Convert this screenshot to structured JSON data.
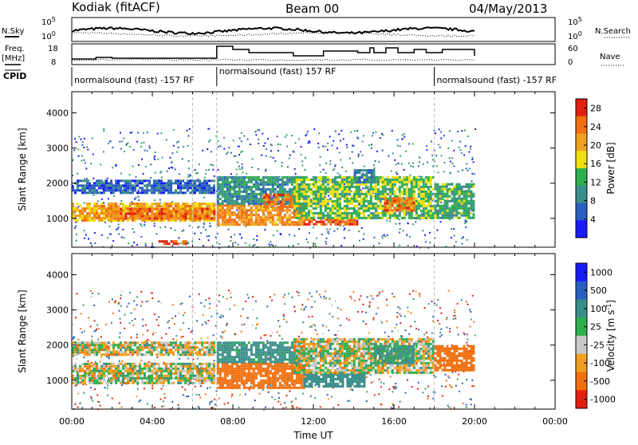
{
  "header": {
    "station": "Kodiak (fitACF)",
    "beam": "Beam 00",
    "date": "04/May/2013"
  },
  "strip_labels": {
    "nsky": "N.Sky",
    "nsearch": "N.Search",
    "freq": "Freq.",
    "freq_unit": "[MHz]",
    "nave": "Nave",
    "cpid": "CPID"
  },
  "strip_ticks": {
    "nsky_top": "10^5",
    "nsky_bottom": "10^0",
    "nsearch_top": "10^5",
    "nsearch_bottom": "10^0",
    "freq_top": "18",
    "freq_bottom": "8",
    "nave_top": "60",
    "nave_bottom": "0"
  },
  "cpid_segments": [
    {
      "label": "normalsound (fast) -157 RF",
      "start_hour": 0,
      "end_hour": 7.2
    },
    {
      "label": "normalsound (fast) 157 RF",
      "start_hour": 7.2,
      "end_hour": 18.0
    },
    {
      "label": "normalsound (fast) -157 RF",
      "start_hour": 18.0,
      "end_hour": 20.0
    }
  ],
  "chart_data": [
    {
      "type": "heatmap",
      "name": "power",
      "xlabel": "Time UT",
      "ylabel": "Slant Range [km]",
      "xlim_hours": [
        0,
        24
      ],
      "ylim": [
        180,
        4600
      ],
      "x_ticks": [
        "00:00",
        "04:00",
        "08:00",
        "12:00",
        "16:00",
        "20:00",
        "00:00"
      ],
      "y_ticks": [
        1000,
        2000,
        3000,
        4000
      ],
      "colorbar": {
        "label": "Power [dB]",
        "ticks": [
          4,
          8,
          12,
          16,
          20,
          24,
          28
        ],
        "range": [
          0,
          30
        ],
        "colors": [
          "#1a1aff",
          "#2a5fbf",
          "#3a8f8a",
          "#2fae4e",
          "#f0e010",
          "#f0a020",
          "#f07010",
          "#e02010"
        ]
      },
      "regions": [
        {
          "t0": 0.0,
          "t1": 7.1,
          "r0": 950,
          "r1": 1450,
          "value": 20
        },
        {
          "t0": 1.8,
          "t1": 7.1,
          "r0": 1000,
          "r1": 1300,
          "value": 24
        },
        {
          "t0": 0.0,
          "t1": 7.1,
          "r0": 1750,
          "r1": 2100,
          "value": 6
        },
        {
          "t0": 4.3,
          "t1": 5.7,
          "r0": 280,
          "r1": 380,
          "value": 26
        },
        {
          "t0": 7.2,
          "t1": 11.5,
          "r0": 800,
          "r1": 1400,
          "value": 22
        },
        {
          "t0": 7.2,
          "t1": 11.5,
          "r0": 1400,
          "r1": 2200,
          "value": 10
        },
        {
          "t0": 9.5,
          "t1": 11.0,
          "r0": 1300,
          "r1": 1700,
          "value": 24
        },
        {
          "t0": 11.5,
          "t1": 14.2,
          "r0": 800,
          "r1": 1000,
          "value": 26
        },
        {
          "t0": 11.0,
          "t1": 18.0,
          "r0": 1000,
          "r1": 2200,
          "value": 14
        },
        {
          "t0": 15.5,
          "t1": 17.0,
          "r0": 1200,
          "r1": 1600,
          "value": 24
        },
        {
          "t0": 18.0,
          "t1": 20.0,
          "r0": 1000,
          "r1": 2000,
          "value": 12
        },
        {
          "t0": 14.0,
          "t1": 15.0,
          "r0": 2000,
          "r1": 2400,
          "value": 8
        }
      ]
    },
    {
      "type": "heatmap",
      "name": "velocity",
      "xlabel": "Time UT",
      "ylabel": "Slant Range [km]",
      "xlim_hours": [
        0,
        24
      ],
      "ylim": [
        180,
        4600
      ],
      "x_ticks": [
        "00:00",
        "04:00",
        "08:00",
        "12:00",
        "16:00",
        "20:00",
        "00:00"
      ],
      "y_ticks": [
        1000,
        2000,
        3000,
        4000
      ],
      "colorbar": {
        "label": "Velocity [m s^-1]",
        "ticks": [
          "1000",
          "500",
          "100",
          "25",
          "-25",
          "-100",
          "-500",
          "-1000"
        ],
        "colors": [
          "#1a1aff",
          "#2a5fbf",
          "#3a8f8a",
          "#2fae4e",
          "#c8c8c8",
          "#f0a020",
          "#f07010",
          "#e02010"
        ]
      },
      "regions": [
        {
          "t0": 0.0,
          "t1": 7.1,
          "r0": 900,
          "r1": 1500,
          "value": 0
        },
        {
          "t0": 0.0,
          "t1": 7.1,
          "r0": 1750,
          "r1": 2100,
          "value": 0
        },
        {
          "t0": 7.2,
          "t1": 11.5,
          "r0": 800,
          "r1": 1500,
          "value": -300
        },
        {
          "t0": 7.2,
          "t1": 11.5,
          "r0": 1500,
          "r1": 2100,
          "value": 200
        },
        {
          "t0": 11.5,
          "t1": 14.5,
          "r0": 800,
          "r1": 1200,
          "value": 300
        },
        {
          "t0": 11.0,
          "t1": 18.0,
          "r0": 1200,
          "r1": 2200,
          "value": 0
        },
        {
          "t0": 15.0,
          "t1": 17.0,
          "r0": 1500,
          "r1": 2000,
          "value": 150
        },
        {
          "t0": 18.0,
          "t1": 20.0,
          "r0": 1300,
          "r1": 2000,
          "value": -300
        }
      ]
    }
  ]
}
